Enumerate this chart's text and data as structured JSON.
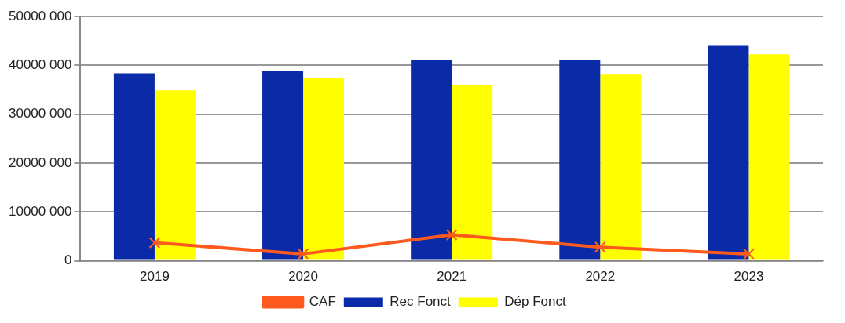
{
  "chart_data": {
    "type": "bar",
    "categories": [
      "2019",
      "2020",
      "2021",
      "2022",
      "2023"
    ],
    "series": [
      {
        "name": "Rec Fonct",
        "color": "#0a2aa8",
        "values": [
          38400000,
          38800000,
          41200000,
          41200000,
          44000000
        ]
      },
      {
        "name": "Dép Fonct",
        "color": "#ffff00",
        "values": [
          34900000,
          37400000,
          36000000,
          38100000,
          42300000
        ]
      },
      {
        "name": "CAF",
        "type": "line",
        "color": "#ff5a1e",
        "values": [
          3700000,
          1400000,
          5300000,
          2800000,
          1400000
        ]
      }
    ],
    "ylim": [
      0,
      50000000
    ],
    "yticks": [
      {
        "value": 0,
        "label": "0"
      },
      {
        "value": 10000000,
        "label": "10000 000"
      },
      {
        "value": 20000000,
        "label": "20000 000"
      },
      {
        "value": 30000000,
        "label": "30000 000"
      },
      {
        "value": 40000000,
        "label": "40000 000"
      },
      {
        "value": 50000000,
        "label": "50000 000"
      }
    ],
    "grid": "y",
    "legend": "bottom",
    "marker": "cross"
  }
}
